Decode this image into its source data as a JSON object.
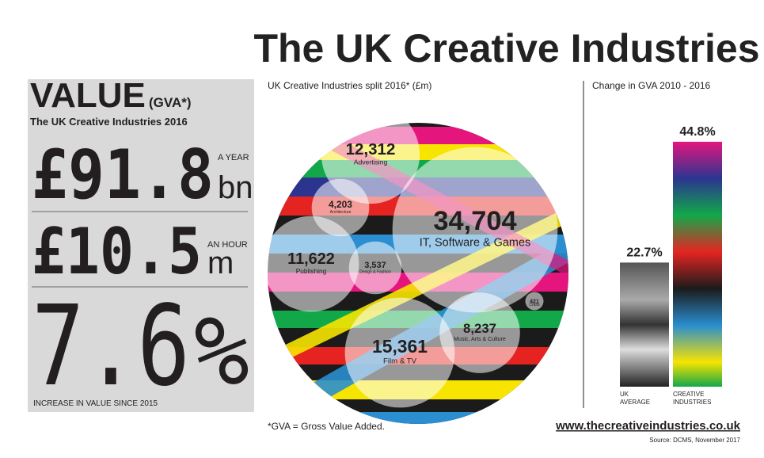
{
  "title": "The UK Creative Industries",
  "value_panel": {
    "heading": "VALUE",
    "heading_note": "(GVA*)",
    "subheading": "The UK Creative Industries 2016",
    "year_amount": "£91.8",
    "year_unit": "bn",
    "year_label": "A YEAR",
    "hour_amount": "£10.5",
    "hour_unit": "m",
    "hour_label": "AN HOUR",
    "increase": "7.6",
    "increase_unit": "%",
    "increase_label": "INCREASE IN VALUE SINCE 2015"
  },
  "split": {
    "title": "UK Creative Industries split 2016* (£m)",
    "bubbles": [
      {
        "label": "Advertising",
        "value": 12312,
        "value_label": "12,312"
      },
      {
        "label": "IT, Software & Games",
        "value": 34704,
        "value_label": "34,704"
      },
      {
        "label": "Architecture",
        "value": 4203,
        "value_label": "4,203"
      },
      {
        "label": "Publishing",
        "value": 11622,
        "value_label": "11,622"
      },
      {
        "label": "Design & Fashion",
        "value": 3537,
        "value_label": "3,537"
      },
      {
        "label": "Crafts",
        "value": 421,
        "value_label": "421"
      },
      {
        "label": "Music, Arts & Culture",
        "value": 8237,
        "value_label": "8,237"
      },
      {
        "label": "Film & TV",
        "value": 15361,
        "value_label": "15,361"
      }
    ]
  },
  "change": {
    "title": "Change in GVA 2010 - 2016",
    "bars": [
      {
        "label": "UK AVERAGE",
        "value": 22.7,
        "value_label": "22.7%"
      },
      {
        "label": "CREATIVE INDUSTRIES",
        "value": 44.8,
        "value_label": "44.8%"
      }
    ]
  },
  "footnote": "*GVA = Gross Value Added.",
  "url": "www.thecreativeindustries.co.uk",
  "source": "Source: DCMS, November 2017"
}
